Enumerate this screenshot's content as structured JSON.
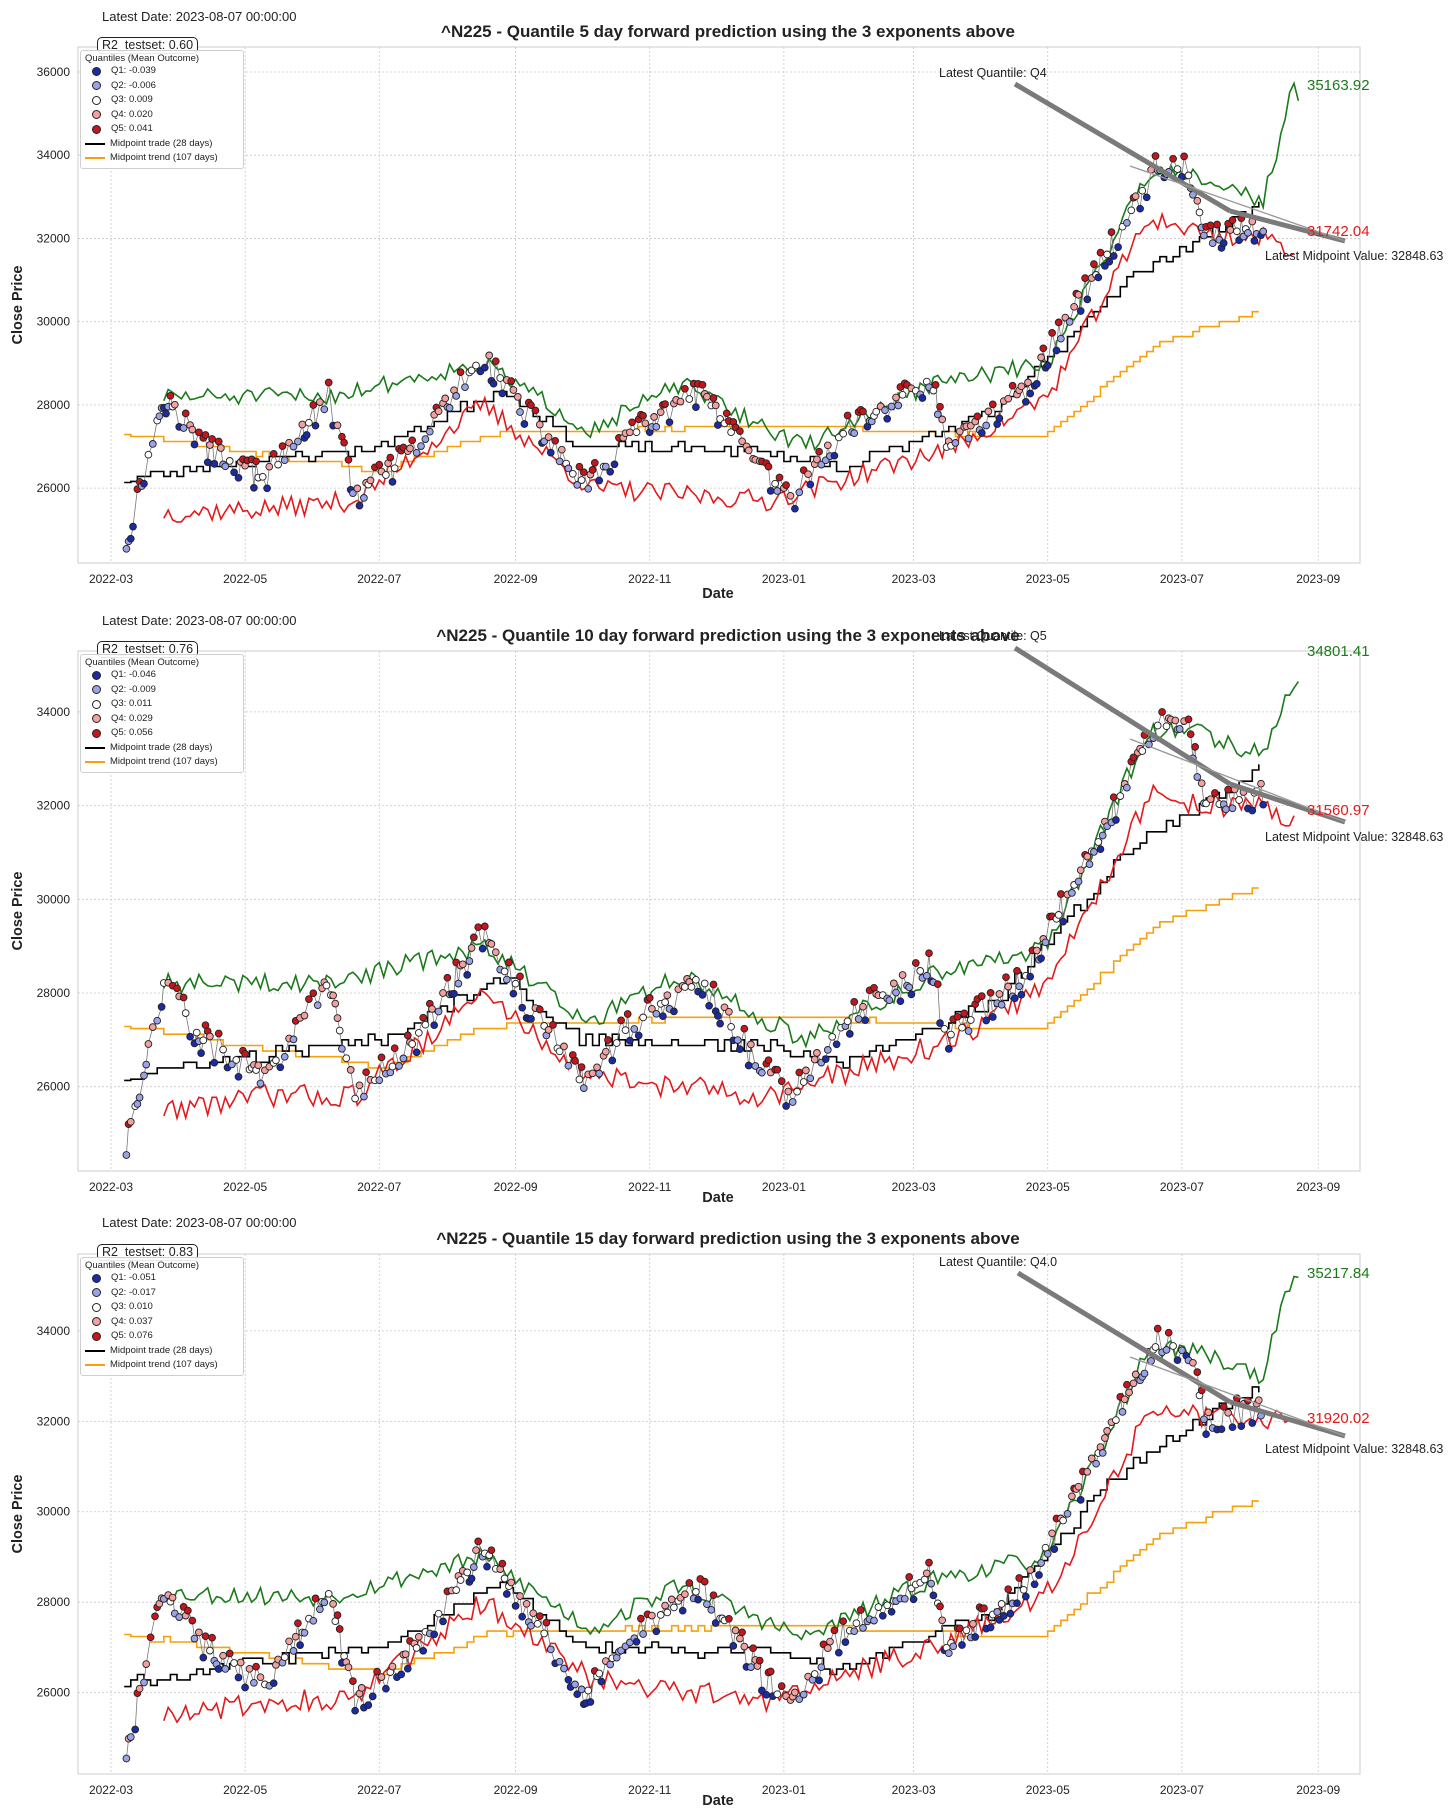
{
  "colors": {
    "q1": "#1b2aa6",
    "q2": "#9aa3e8",
    "q3": "#ffffff",
    "q4": "#f2a0a0",
    "q5": "#c4161c",
    "green": "#1a7a1a",
    "red": "#e31a1c",
    "black": "#000000",
    "orange": "#f5a00c"
  },
  "legend_title": "Quantiles (Mean Outcome)",
  "midpoint_trade_label": "Midpoint trade (28 days)",
  "midpoint_trend_label": "Midpoint trend (107 days)",
  "latest_midpoint_label": "Latest Midpoint Value: 32848.63",
  "ylabel": "Close Price",
  "xlabel": "Date",
  "panels": [
    {
      "latest_date": "Latest Date: 2023-08-07 00:00:00",
      "title": "^N225 - Quantile 5 day forward prediction using the 3 exponents above",
      "r2": "R2_testset: 0.60",
      "latest_quantile": "Latest Quantile: Q4",
      "upper_value": "35163.92",
      "lower_value": "31742.04",
      "legend": [
        "Q1: -0.039",
        "Q2: -0.006",
        "Q3: 0.009",
        "Q4: 0.020",
        "Q5: 0.041"
      ]
    },
    {
      "latest_date": "Latest Date: 2023-08-07 00:00:00",
      "title": "^N225 - Quantile 10 day forward prediction using the 3 exponents above",
      "r2": "R2_testset: 0.76",
      "latest_quantile": "Latest Quantile: Q5",
      "upper_value": "34801.41",
      "lower_value": "31560.97",
      "legend": [
        "Q1: -0.046",
        "Q2: -0.009",
        "Q3: 0.011",
        "Q4: 0.029",
        "Q5: 0.056"
      ]
    },
    {
      "latest_date": "Latest Date: 2023-08-07 00:00:00",
      "title": "^N225 - Quantile 15 day forward prediction using the 3 exponents above",
      "r2": "R2_testset: 0.83",
      "latest_quantile": "Latest Quantile: Q4.0",
      "upper_value": "35217.84",
      "lower_value": "31920.02",
      "legend": [
        "Q1: -0.051",
        "Q2: -0.017",
        "Q3: 0.010",
        "Q4: 0.037",
        "Q5: 0.076"
      ]
    }
  ],
  "chart_data": [
    {
      "type": "line",
      "title": "^N225 - Quantile 5 day forward prediction using the 3 exponents above",
      "xlabel": "Date",
      "ylabel": "Close Price",
      "ylim": [
        24200,
        36600
      ],
      "xticks": [
        "2022-03",
        "2022-05",
        "2022-07",
        "2022-09",
        "2022-11",
        "2023-01",
        "2023-03",
        "2023-05",
        "2023-07",
        "2023-09"
      ],
      "yticks": [
        26000,
        28000,
        30000,
        32000,
        34000,
        36000
      ],
      "series": [
        {
          "name": "Close Price (quantile-coloured points)",
          "x": [
            "2022-03-08",
            "2022-03-25",
            "2022-04-12",
            "2022-05-10",
            "2022-06-08",
            "2022-06-20",
            "2022-07-15",
            "2022-08-17",
            "2022-09-06",
            "2022-10-03",
            "2022-10-21",
            "2022-11-24",
            "2022-12-20",
            "2023-01-04",
            "2023-01-27",
            "2023-03-09",
            "2023-03-16",
            "2023-04-20",
            "2023-05-19",
            "2023-06-19",
            "2023-07-03",
            "2023-07-12",
            "2023-08-07"
          ],
          "values": [
            24700,
            28200,
            27000,
            26200,
            28200,
            25800,
            26800,
            29200,
            27800,
            26000,
            27200,
            28300,
            26500,
            25700,
            27300,
            28600,
            27000,
            28300,
            30800,
            33700,
            33700,
            32000,
            32300
          ]
        },
        {
          "name": "Upper band (green)",
          "x": [
            "2022-03-25",
            "2022-06-07",
            "2022-08-17",
            "2022-10-05",
            "2022-11-15",
            "2023-01-10",
            "2023-03-09",
            "2023-05-01",
            "2023-06-16",
            "2023-07-05",
            "2023-08-07",
            "2023-08-15",
            "2023-08-21",
            "2023-08-23"
          ],
          "values": [
            28200,
            28200,
            29000,
            27400,
            28500,
            27000,
            28500,
            29000,
            33600,
            33600,
            32900,
            34500,
            35700,
            35164
          ]
        },
        {
          "name": "Lower band (red)",
          "x": [
            "2022-03-25",
            "2022-05-10",
            "2022-06-20",
            "2022-08-17",
            "2022-10-05",
            "2022-12-25",
            "2023-03-20",
            "2023-05-01",
            "2023-06-16",
            "2023-07-12",
            "2023-08-07",
            "2023-08-21"
          ],
          "values": [
            25400,
            25500,
            25700,
            28000,
            26000,
            25700,
            27000,
            28200,
            32500,
            32100,
            32000,
            31742
          ]
        },
        {
          "name": "Midpoint trade (28 days)",
          "x": [
            "2022-03-07",
            "2022-04-12",
            "2022-07-01",
            "2022-08-26",
            "2022-09-30",
            "2022-12-20",
            "2023-01-27",
            "2023-04-06",
            "2023-06-05",
            "2023-08-07"
          ],
          "values": [
            26200,
            26500,
            27000,
            28400,
            27000,
            26900,
            26500,
            27800,
            31000,
            32849
          ]
        },
        {
          "name": "Midpoint trend (107 days)",
          "x": [
            "2022-03-07",
            "2022-07-01",
            "2022-08-20",
            "2023-01-01",
            "2023-04-28",
            "2023-06-20",
            "2023-08-07"
          ],
          "values": [
            27300,
            26400,
            27300,
            27500,
            27200,
            29500,
            30300
          ]
        }
      ]
    },
    {
      "type": "line",
      "title": "^N225 - Quantile 10 day forward prediction using the 3 exponents above",
      "xlabel": "Date",
      "ylabel": "Close Price",
      "ylim": [
        24200,
        35300
      ],
      "xticks": [
        "2022-03",
        "2022-05",
        "2022-07",
        "2022-09",
        "2022-11",
        "2023-01",
        "2023-03",
        "2023-05",
        "2023-07",
        "2023-09"
      ],
      "yticks": [
        26000,
        28000,
        30000,
        32000,
        34000
      ],
      "series": [
        {
          "name": "Close Price (quantile-coloured points)",
          "x": [
            "2022-03-08",
            "2022-03-25",
            "2022-04-12",
            "2022-05-10",
            "2022-06-08",
            "2022-06-20",
            "2022-07-15",
            "2022-08-17",
            "2022-09-06",
            "2022-10-03",
            "2022-10-21",
            "2022-11-24",
            "2022-12-20",
            "2023-01-04",
            "2023-01-27",
            "2023-03-09",
            "2023-03-16",
            "2023-04-20",
            "2023-05-19",
            "2023-06-19",
            "2023-07-03",
            "2023-07-12",
            "2023-08-07"
          ],
          "values": [
            24700,
            28200,
            27000,
            26200,
            28200,
            25800,
            26800,
            29200,
            27800,
            26000,
            27200,
            28300,
            26500,
            25700,
            27300,
            28600,
            27000,
            28300,
            30800,
            33700,
            33700,
            32000,
            32300
          ]
        },
        {
          "name": "Upper band (green)",
          "x": [
            "2022-03-25",
            "2022-06-07",
            "2022-08-17",
            "2022-10-05",
            "2022-11-15",
            "2023-01-10",
            "2023-03-09",
            "2023-05-01",
            "2023-06-16",
            "2023-07-05",
            "2023-08-07",
            "2023-08-16",
            "2023-08-23"
          ],
          "values": [
            28200,
            28200,
            29000,
            27400,
            28400,
            27000,
            28400,
            29000,
            33600,
            33600,
            33100,
            34200,
            34801
          ]
        },
        {
          "name": "Lower band (red)",
          "x": [
            "2022-03-25",
            "2022-05-10",
            "2022-06-20",
            "2022-08-17",
            "2022-10-05",
            "2022-12-25",
            "2023-03-20",
            "2023-05-01",
            "2023-06-16",
            "2023-07-12",
            "2023-08-07",
            "2023-08-21"
          ],
          "values": [
            25500,
            25800,
            25800,
            28000,
            26200,
            25800,
            27000,
            28200,
            32200,
            32000,
            32000,
            31561
          ]
        },
        {
          "name": "Midpoint trade (28 days)",
          "x": [
            "2022-03-07",
            "2022-04-12",
            "2022-07-01",
            "2022-08-26",
            "2022-09-30",
            "2022-12-20",
            "2023-01-27",
            "2023-04-06",
            "2023-06-05",
            "2023-08-07"
          ],
          "values": [
            26200,
            26500,
            27000,
            28400,
            27000,
            26900,
            26500,
            27800,
            31000,
            32849
          ]
        },
        {
          "name": "Midpoint trend (107 days)",
          "x": [
            "2022-03-07",
            "2022-07-01",
            "2022-08-20",
            "2023-01-01",
            "2023-04-28",
            "2023-06-20",
            "2023-08-07"
          ],
          "values": [
            27300,
            26400,
            27300,
            27500,
            27200,
            29500,
            30300
          ]
        }
      ]
    },
    {
      "type": "line",
      "title": "^N225 - Quantile 15 day forward prediction using the 3 exponents above",
      "xlabel": "Date",
      "ylabel": "Close Price",
      "ylim": [
        24200,
        35700
      ],
      "xticks": [
        "2022-03",
        "2022-05",
        "2022-07",
        "2022-09",
        "2022-11",
        "2023-01",
        "2023-03",
        "2023-05",
        "2023-07",
        "2023-09"
      ],
      "yticks": [
        26000,
        28000,
        30000,
        32000,
        34000
      ],
      "series": [
        {
          "name": "Close Price (quantile-coloured points)",
          "x": [
            "2022-03-08",
            "2022-03-25",
            "2022-04-12",
            "2022-05-10",
            "2022-06-08",
            "2022-06-20",
            "2022-07-15",
            "2022-08-17",
            "2022-09-06",
            "2022-10-03",
            "2022-10-21",
            "2022-11-24",
            "2022-12-20",
            "2023-01-04",
            "2023-01-27",
            "2023-03-09",
            "2023-03-16",
            "2023-04-20",
            "2023-05-19",
            "2023-06-19",
            "2023-07-03",
            "2023-07-12",
            "2023-08-07"
          ],
          "values": [
            24700,
            28200,
            27000,
            26200,
            28200,
            25800,
            26800,
            29200,
            27800,
            26000,
            27200,
            28300,
            26500,
            25700,
            27300,
            28600,
            27000,
            28300,
            30800,
            33700,
            33700,
            32000,
            32300
          ]
        },
        {
          "name": "Upper band (green)",
          "x": [
            "2022-03-25",
            "2022-06-07",
            "2022-08-17",
            "2022-10-05",
            "2022-11-15",
            "2023-01-10",
            "2023-03-09",
            "2023-05-01",
            "2023-06-16",
            "2023-07-05",
            "2023-08-07",
            "2023-08-16",
            "2023-08-23"
          ],
          "values": [
            28200,
            28100,
            29000,
            27400,
            28400,
            27200,
            28500,
            29000,
            33600,
            33600,
            33000,
            34600,
            35218
          ]
        },
        {
          "name": "Lower band (red)",
          "x": [
            "2022-03-25",
            "2022-05-10",
            "2022-06-20",
            "2022-08-17",
            "2022-10-05",
            "2022-12-25",
            "2023-03-20",
            "2023-05-01",
            "2023-06-16",
            "2023-07-12",
            "2023-08-07",
            "2023-08-21"
          ],
          "values": [
            25500,
            25800,
            25900,
            28000,
            26300,
            25800,
            27200,
            28200,
            32200,
            32100,
            32100,
            31920
          ]
        },
        {
          "name": "Midpoint trade (28 days)",
          "x": [
            "2022-03-07",
            "2022-04-12",
            "2022-07-01",
            "2022-08-26",
            "2022-09-30",
            "2022-12-20",
            "2023-01-27",
            "2023-04-06",
            "2023-06-05",
            "2023-08-07"
          ],
          "values": [
            26200,
            26500,
            27000,
            28400,
            27000,
            26900,
            26500,
            27800,
            31000,
            32849
          ]
        },
        {
          "name": "Midpoint trend (107 days)",
          "x": [
            "2022-03-07",
            "2022-07-01",
            "2022-08-20",
            "2023-01-01",
            "2023-04-28",
            "2023-06-20",
            "2023-08-07"
          ],
          "values": [
            27300,
            26400,
            27300,
            27500,
            27200,
            29500,
            30300
          ]
        }
      ]
    }
  ]
}
